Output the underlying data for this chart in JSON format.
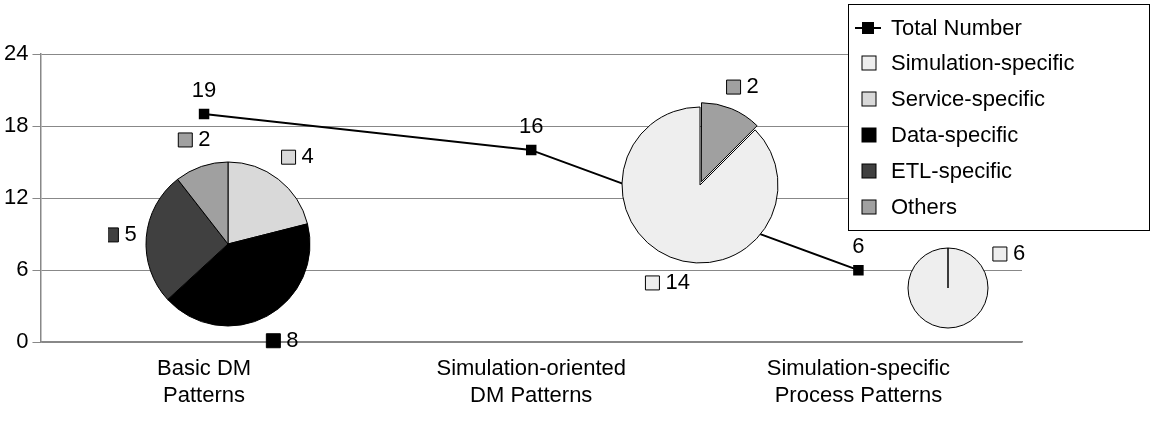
{
  "chart_data": [
    {
      "type": "line",
      "categories": [
        "Basic DM\nPatterns",
        "Simulation-oriented\nDM Patterns",
        "Simulation-specific\nProcess Patterns"
      ],
      "series": [
        {
          "name": "Total Number",
          "color": "#000000",
          "values": [
            19,
            16,
            6
          ]
        }
      ],
      "ylim": [
        0,
        24
      ],
      "yticks": [
        0,
        6,
        12,
        18,
        24
      ],
      "grid": "y",
      "marker": "square",
      "data_labels": true,
      "legend": "top right"
    },
    {
      "type": "pie",
      "categories": [
        "Simulation-specific",
        "Service-specific",
        "Data-specific",
        "ETL-specific",
        "Others"
      ],
      "colors": [
        "#eeeeee",
        "#d9d9d9",
        "#000000",
        "#404040",
        "#a0a0a0"
      ],
      "legend": "top right",
      "series": [
        {
          "values": [
            0,
            4,
            8,
            5,
            2
          ],
          "value_labels": [
            null,
            "4",
            "8",
            "5",
            "2"
          ]
        },
        {
          "values": [
            14,
            0,
            0,
            0,
            2
          ],
          "value_labels": [
            "14",
            null,
            null,
            null,
            "2"
          ]
        },
        {
          "values": [
            6,
            0,
            0,
            0,
            0
          ],
          "value_labels": [
            "6",
            null,
            null,
            null,
            null
          ]
        }
      ]
    }
  ]
}
